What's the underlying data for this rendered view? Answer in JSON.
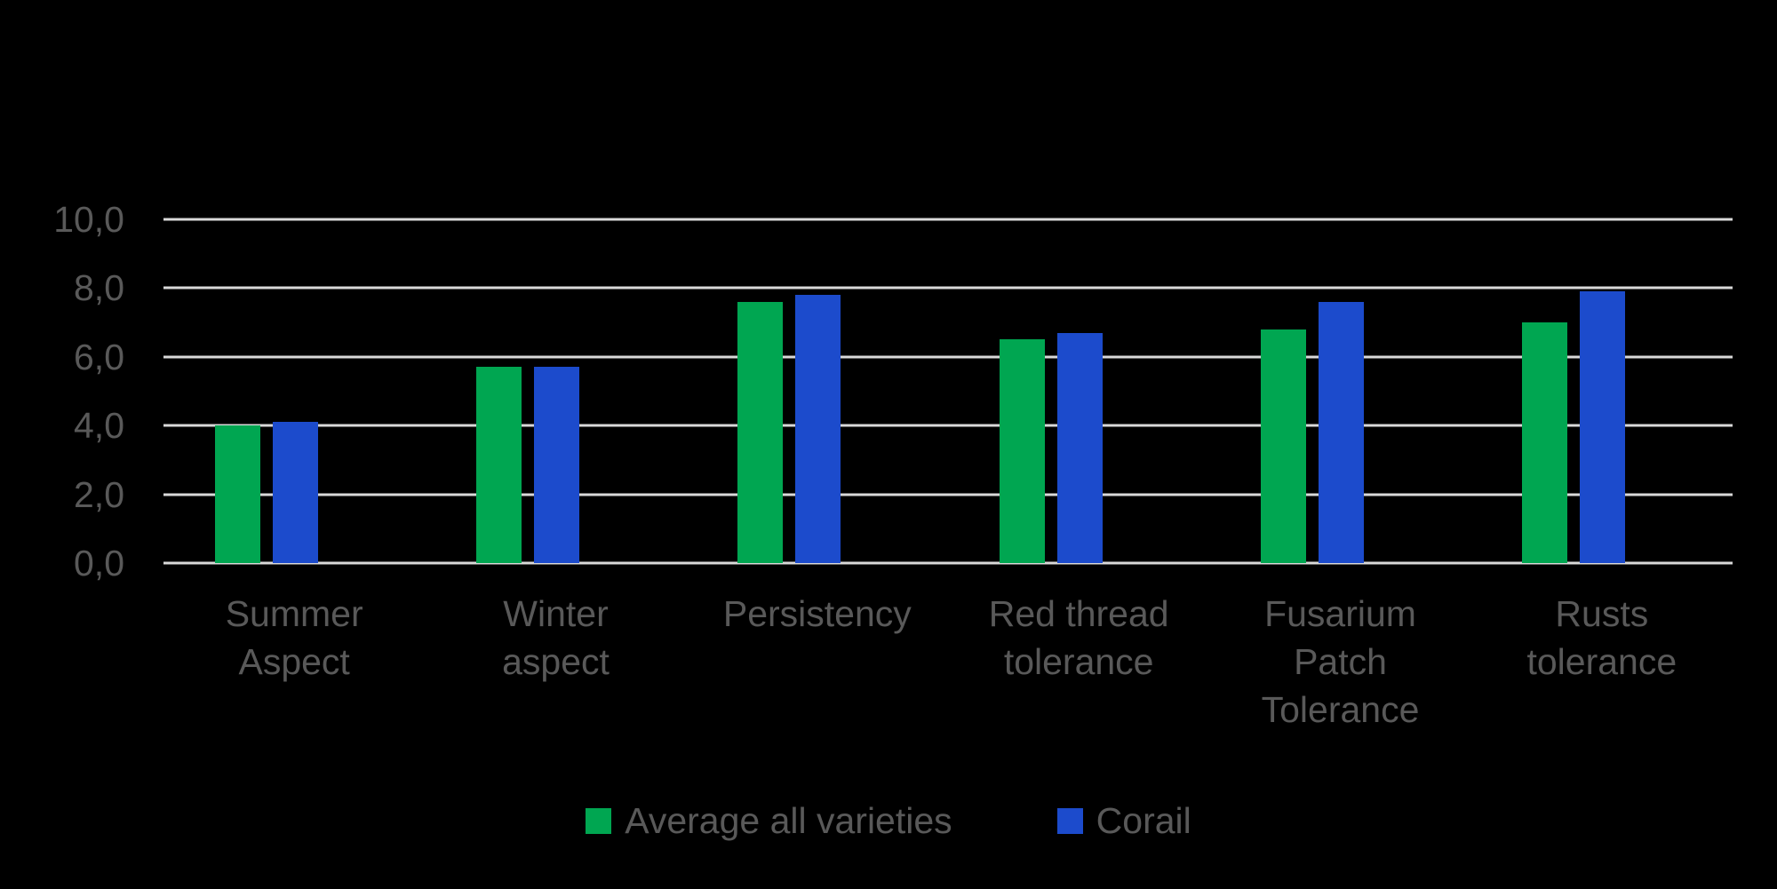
{
  "chart_data": {
    "type": "bar",
    "title": "",
    "categories": [
      "Summer Aspect",
      "Winter aspect",
      "Persistency",
      "Red thread tolerance",
      "Fusarium Patch Tolerance",
      "Rusts tolerance"
    ],
    "category_lines": [
      [
        "Summer",
        "Aspect"
      ],
      [
        "Winter",
        "aspect"
      ],
      [
        "Persistency"
      ],
      [
        "Red thread",
        "tolerance"
      ],
      [
        "Fusarium",
        "Patch",
        "Tolerance"
      ],
      [
        "Rusts",
        "tolerance"
      ]
    ],
    "series": [
      {
        "name": "Average all varieties",
        "color": "#00A651",
        "values": [
          4.0,
          5.7,
          7.6,
          6.5,
          6.8,
          7.0
        ]
      },
      {
        "name": "Corail",
        "color": "#1C4BCC",
        "values": [
          4.1,
          5.7,
          7.8,
          6.7,
          7.6,
          7.9
        ]
      }
    ],
    "xlabel": "",
    "ylabel": "",
    "ylim": [
      0,
      10
    ],
    "ytick_step": 2,
    "ytick_labels": [
      "0,0",
      "2,0",
      "4,0",
      "6,0",
      "8,0",
      "10,0"
    ],
    "grid": true,
    "legend_position": "bottom"
  },
  "colors": {
    "background": "#000000",
    "gridline": "#D9D9D9",
    "axis_text": "#595959",
    "series_average": "#00A651",
    "series_corail": "#1C4BCC"
  }
}
